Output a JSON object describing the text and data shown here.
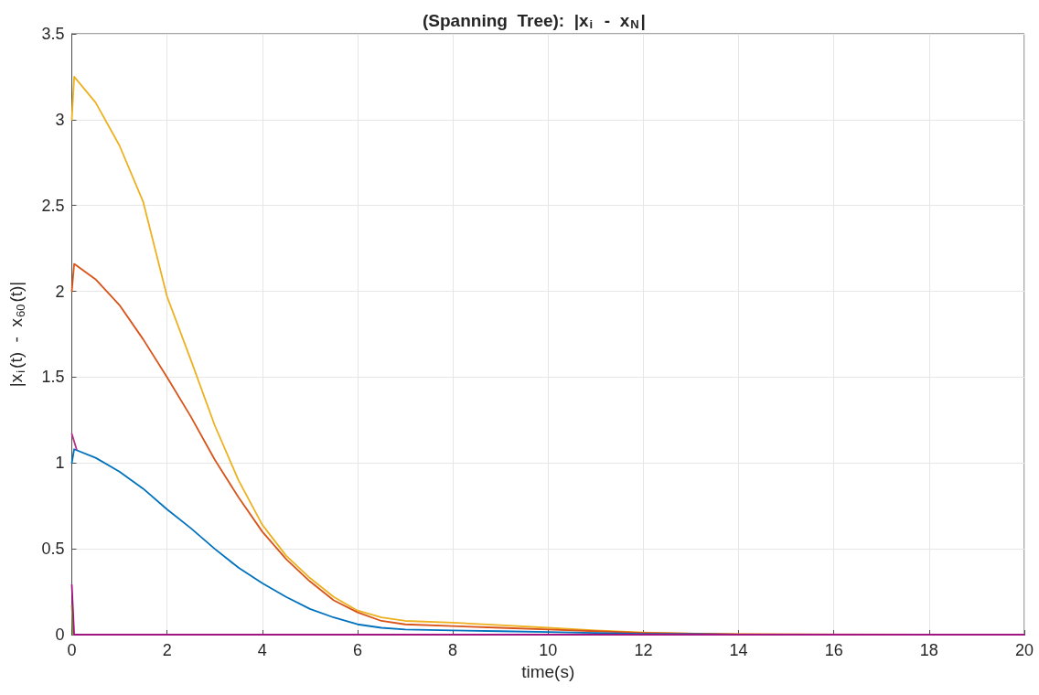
{
  "chart_data": {
    "type": "line",
    "title": "(Spanning  Tree):  |x$_{i}$  -  x$_{N}$|",
    "xlabel": "time(s)",
    "ylabel": "|x$_{i}$(t)  -  x$_{60}$(t)|",
    "xlim": [
      0,
      20
    ],
    "xticks": [
      0,
      2,
      4,
      6,
      8,
      10,
      12,
      14,
      16,
      18,
      20
    ],
    "ylim": [
      0,
      3.5
    ],
    "yticks": [
      0,
      0.5,
      1,
      1.5,
      2,
      2.5,
      3,
      3.5
    ],
    "grid": true,
    "marker": "none",
    "line_style": "solid",
    "series": [
      {
        "color": "#edb120",
        "x": [
          0,
          0.05,
          0.5,
          1,
          1.5,
          2,
          2.5,
          3,
          3.5,
          4,
          4.5,
          5,
          5.5,
          6,
          6.5,
          7,
          8,
          9,
          10,
          11,
          12,
          13,
          14,
          16,
          20
        ],
        "values": [
          3.0,
          3.25,
          3.1,
          2.85,
          2.52,
          1.97,
          1.6,
          1.22,
          0.9,
          0.64,
          0.46,
          0.33,
          0.22,
          0.14,
          0.1,
          0.08,
          0.07,
          0.055,
          0.04,
          0.025,
          0.013,
          0.006,
          0.003,
          0.001,
          0
        ]
      },
      {
        "color": "#d95319",
        "x": [
          0,
          0.05,
          0.5,
          1,
          1.5,
          2,
          2.5,
          3,
          3.5,
          4,
          4.5,
          5,
          5.5,
          6,
          6.5,
          7,
          8,
          9,
          10,
          11,
          12,
          14,
          20
        ],
        "values": [
          2.0,
          2.16,
          2.07,
          1.92,
          1.72,
          1.5,
          1.27,
          1.02,
          0.8,
          0.6,
          0.44,
          0.31,
          0.2,
          0.13,
          0.08,
          0.06,
          0.05,
          0.04,
          0.03,
          0.02,
          0.01,
          0.002,
          0
        ]
      },
      {
        "color": "#0072bd",
        "x": [
          0,
          0.05,
          0.5,
          1,
          1.5,
          2,
          2.5,
          3,
          3.5,
          4,
          4.5,
          5,
          5.5,
          6,
          6.5,
          7,
          8,
          9,
          10,
          11,
          12,
          14,
          20
        ],
        "values": [
          1.0,
          1.08,
          1.03,
          0.95,
          0.85,
          0.73,
          0.62,
          0.5,
          0.39,
          0.3,
          0.22,
          0.15,
          0.1,
          0.06,
          0.04,
          0.03,
          0.025,
          0.02,
          0.015,
          0.01,
          0.005,
          0.001,
          0
        ]
      },
      {
        "color": "#b5308a",
        "x": [
          0,
          0.1
        ],
        "values": [
          1.17,
          1.08
        ]
      },
      {
        "color": "#77ac30",
        "x": [
          0,
          0.03
        ],
        "values": [
          0.17,
          0
        ]
      },
      {
        "color": "#a2147f",
        "x": [
          0,
          0.05,
          20
        ],
        "values": [
          0.29,
          0,
          0
        ]
      }
    ]
  }
}
